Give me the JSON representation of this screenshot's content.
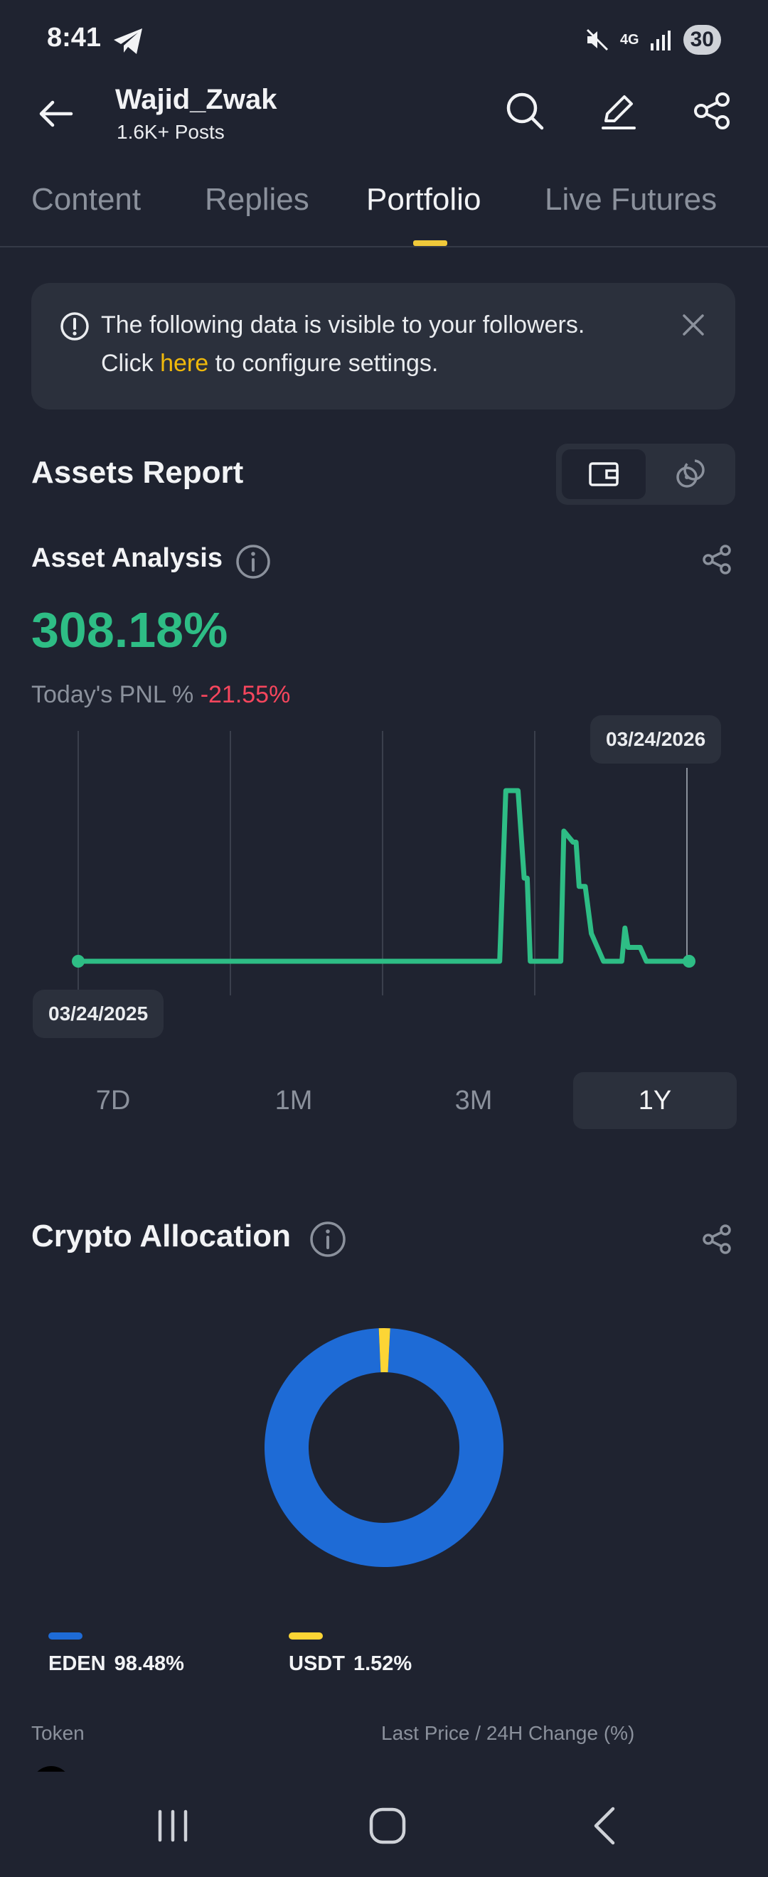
{
  "status_bar": {
    "time": "8:41",
    "battery": "30",
    "network": "4G"
  },
  "header": {
    "user_name": "Wajid_Zwak",
    "post_count": "1.6K+ Posts"
  },
  "tabs": [
    {
      "label": "Content"
    },
    {
      "label": "Replies"
    },
    {
      "label": "Portfolio"
    },
    {
      "label": "Live Futures"
    }
  ],
  "notice": {
    "line1": "The following data is visible to your followers.",
    "line2_prefix": "Click ",
    "line2_link": "here",
    "line2_suffix": " to configure settings."
  },
  "assets_report": {
    "title": "Assets Report"
  },
  "asset_analysis": {
    "title": "Asset Analysis",
    "pnl_total": "308.18%",
    "today_label": "Today's PNL %",
    "today_value": "-21.55%"
  },
  "chart_data": {
    "type": "line",
    "x_start": "03/24/2025",
    "x_end": "03/24/2026",
    "line_color": "#2ebd85",
    "x": [
      0,
      0.69,
      0.7,
      0.72,
      0.73,
      0.735,
      0.74,
      0.76,
      0.78,
      0.79,
      0.795,
      0.81,
      0.815,
      0.82,
      0.83,
      0.84,
      0.86,
      0.87,
      0.875,
      0.88,
      0.885,
      0.89,
      0.895,
      0.9,
      0.92,
      0.93,
      0.935,
      0.94,
      0.95,
      0.97,
      1.0
    ],
    "values": [
      0,
      0,
      308,
      308,
      150,
      150,
      0,
      0,
      0,
      0,
      235,
      215,
      215,
      135,
      135,
      50,
      0,
      0,
      0,
      0,
      0,
      0,
      60,
      25,
      25,
      0,
      0,
      0,
      0,
      0,
      0
    ]
  },
  "ranges": [
    "7D",
    "1M",
    "3M",
    "1Y"
  ],
  "active_range": "1Y",
  "allocation": {
    "title": "Crypto Allocation",
    "items": [
      {
        "token": "EDEN",
        "percent_label": "98.48%",
        "value": 98.48,
        "color": "#1e6bd6"
      },
      {
        "token": "USDT",
        "percent_label": "1.52%",
        "value": 1.52,
        "color": "#fcd535"
      }
    ]
  },
  "table_columns": {
    "token": "Token",
    "price": "Last Price / 24H Change (%)"
  }
}
